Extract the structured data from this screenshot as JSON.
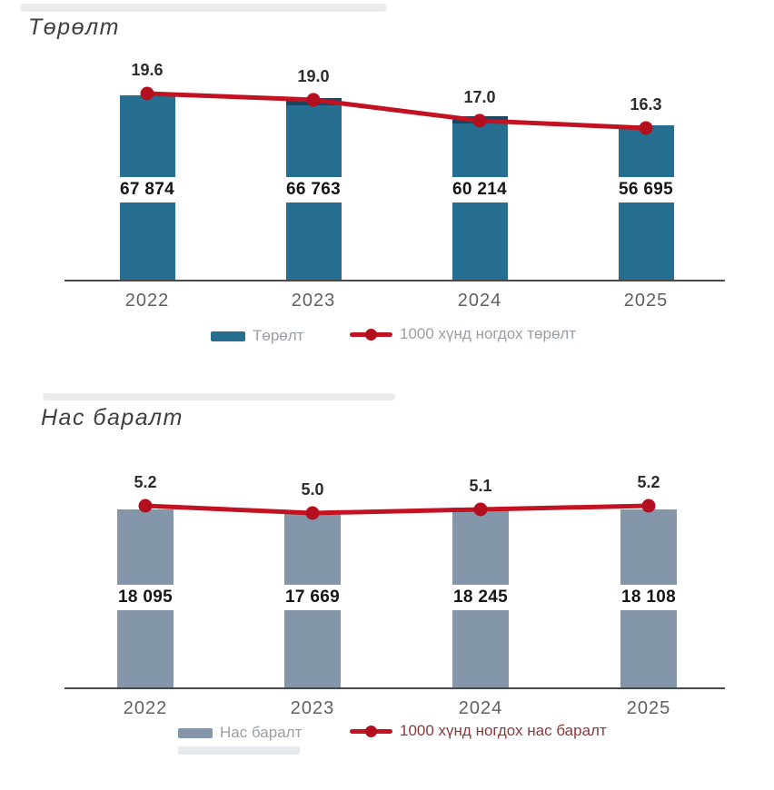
{
  "chart_data": [
    {
      "type": "bar",
      "title": "Төрөлт",
      "categories": [
        "2022",
        "2023",
        "2024",
        "2025"
      ],
      "series": [
        {
          "name": "Төрөлт",
          "type": "bar",
          "values": [
            67874,
            66763,
            60214,
            56695
          ],
          "labels": [
            "67 874",
            "66 763",
            "60 214",
            "56 695"
          ],
          "color": "#266f90"
        },
        {
          "name": "1000 хүнд ногдох төрөлт",
          "type": "line",
          "values": [
            19.6,
            19.0,
            17.0,
            16.3
          ],
          "labels": [
            "19.6",
            "19.0",
            "17.0",
            "16.3"
          ],
          "color": "#c31322",
          "dot_color": "#b30f1e"
        }
      ],
      "legend_position": "bottom",
      "grid": false,
      "bar_axis_range": [
        0,
        70000
      ],
      "line_axis_range": [
        0,
        20
      ]
    },
    {
      "type": "bar",
      "title": "Нас баралт",
      "categories": [
        "2022",
        "2023",
        "2024",
        "2025"
      ],
      "series": [
        {
          "name": "Нас баралт",
          "type": "bar",
          "values": [
            18095,
            17669,
            18245,
            18108
          ],
          "labels": [
            "18 095",
            "17 669",
            "18 245",
            "18 108"
          ],
          "color": "#8496aa"
        },
        {
          "name": "1000 хүнд ногдох нас баралт",
          "type": "line",
          "values": [
            5.2,
            5.0,
            5.1,
            5.2
          ],
          "labels": [
            "5.2",
            "5.0",
            "5.1",
            "5.2"
          ],
          "color": "#c31322",
          "dot_color": "#b30f1e"
        }
      ],
      "legend_position": "bottom",
      "grid": false,
      "bar_axis_range": [
        0,
        19000
      ],
      "line_axis_range": [
        0,
        6
      ]
    }
  ],
  "decor": {
    "cap_color": "#1d4560",
    "axis_color": "#4a4a4a"
  }
}
